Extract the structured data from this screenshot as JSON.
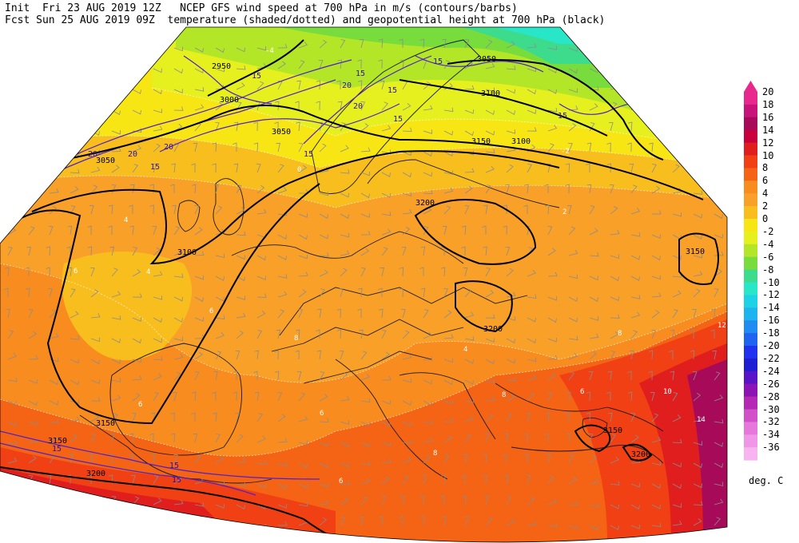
{
  "header": {
    "line1": "Init  Fri 23 AUG 2019 12Z   NCEP GFS wind speed at 700 hPa in m/s (contours/barbs)",
    "line2": "Fcst Sun 25 AUG 2019 09Z  temperature (shaded/dotted) and geopotential height at 700 hPa (black)"
  },
  "colorbar": {
    "unit": "deg. C",
    "levels": [
      "20",
      "18",
      "16",
      "14",
      "12",
      "10",
      "8",
      "6",
      "4",
      "2",
      "0",
      "-2",
      "-4",
      "-6",
      "-8",
      "-10",
      "-12",
      "-14",
      "-16",
      "-18",
      "-20",
      "-22",
      "-24",
      "-26",
      "-28",
      "-30",
      "-32",
      "-34",
      "-36"
    ],
    "colors": [
      "#e8288c",
      "#c8147a",
      "#a80a5a",
      "#c8003c",
      "#e01e1e",
      "#f04014",
      "#f46414",
      "#f88c1e",
      "#f8a028",
      "#f8be1e",
      "#f8e614",
      "#e6f01e",
      "#b4e628",
      "#78dc3c",
      "#3cdc8c",
      "#28e6c8",
      "#1ed2e6",
      "#1eb4f0",
      "#1e8cf0",
      "#1e64f0",
      "#1e32f0",
      "#1e1ed2",
      "#5a14c8",
      "#8c14b4",
      "#b428b4",
      "#d250c8",
      "#e678dc",
      "#f096e6",
      "#f8b4f0"
    ]
  },
  "map": {
    "height_labels": [
      "3050",
      "3100",
      "3150",
      "3200",
      "3150",
      "3200",
      "3150",
      "3200",
      "3100",
      "3050",
      "3000",
      "2950",
      "3050",
      "3100",
      "3150",
      "3200",
      "3150"
    ],
    "wind_labels": [
      "15",
      "20",
      "15",
      "20",
      "20",
      "15",
      "20",
      "15",
      "15",
      "15",
      "20",
      "15",
      "15",
      "15",
      "15",
      "15"
    ],
    "temp_labels": [
      "-4",
      "0",
      "-2",
      "2",
      "4",
      "6",
      "4",
      "6",
      "8",
      "8",
      "6",
      "10",
      "12",
      "14",
      "6",
      "8",
      "6",
      "4",
      "8",
      "6"
    ]
  }
}
